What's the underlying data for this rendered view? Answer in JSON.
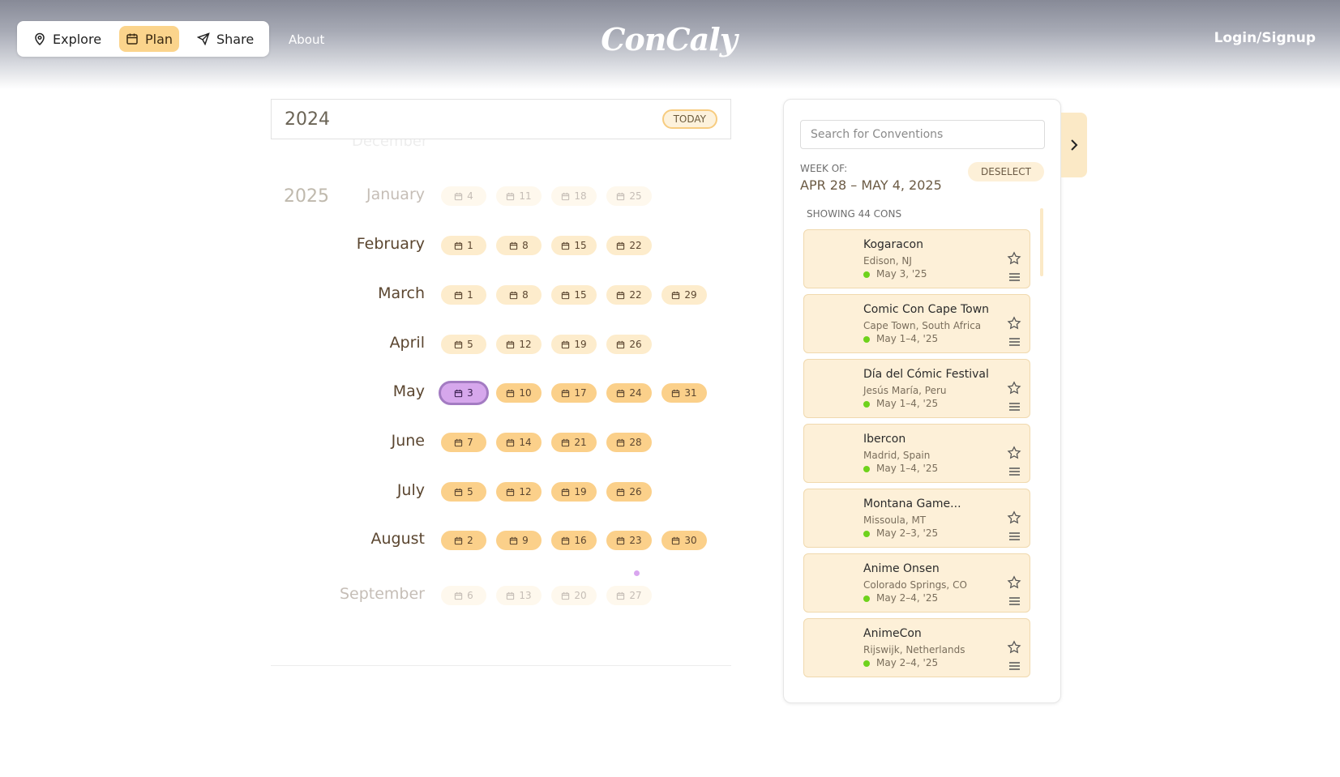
{
  "nav": {
    "explore": "Explore",
    "plan": "Plan",
    "share": "Share",
    "about": "About",
    "logo": "ConCaly",
    "login": "Login/Signup"
  },
  "calendar": {
    "current_year": "2024",
    "today_label": "TODAY",
    "ghost_month": "December",
    "next_year": "2025",
    "months": [
      {
        "name": "January",
        "days": [
          "4",
          "11",
          "18",
          "25"
        ],
        "state": "faded"
      },
      {
        "name": "February",
        "days": [
          "1",
          "8",
          "15",
          "22"
        ],
        "state": "normal"
      },
      {
        "name": "March",
        "days": [
          "1",
          "8",
          "15",
          "22",
          "29"
        ],
        "state": "normal"
      },
      {
        "name": "April",
        "days": [
          "5",
          "12",
          "19",
          "26"
        ],
        "state": "normal"
      },
      {
        "name": "May",
        "days": [
          "3",
          "10",
          "17",
          "24",
          "31"
        ],
        "state": "active",
        "selected_day": "3"
      },
      {
        "name": "June",
        "days": [
          "7",
          "14",
          "21",
          "28"
        ],
        "state": "active"
      },
      {
        "name": "July",
        "days": [
          "5",
          "12",
          "19",
          "26"
        ],
        "state": "active"
      },
      {
        "name": "August",
        "days": [
          "2",
          "9",
          "16",
          "23",
          "30"
        ],
        "state": "active"
      },
      {
        "name": "September",
        "days": [
          "6",
          "13",
          "20",
          "27"
        ],
        "state": "faded"
      }
    ]
  },
  "panel": {
    "search_placeholder": "Search for Conventions",
    "week_of_label": "WEEK OF:",
    "week_range": "APR 28 – MAY 4, 2025",
    "deselect_label": "DESELECT",
    "showing_label": "SHOWING 44 CONS",
    "cons": [
      {
        "name": "Kogaracon",
        "location": "Edison, NJ",
        "date": "May 3, '25"
      },
      {
        "name": "Comic Con Cape Town",
        "location": "Cape Town, South Africa",
        "date": "May 1–4, '25"
      },
      {
        "name": "Día del Cómic Festival",
        "location": "Jesús María, Peru",
        "date": "May 1–4, '25"
      },
      {
        "name": "Ibercon",
        "location": "Madrid, Spain",
        "date": "May 1–4, '25"
      },
      {
        "name": "Montana Game...",
        "location": "Missoula, MT",
        "date": "May 2–3, '25"
      },
      {
        "name": "Anime Onsen",
        "location": "Colorado Springs, CO",
        "date": "May 2–4, '25"
      },
      {
        "name": "AnimeCon",
        "location": "Rijswijk, Netherlands",
        "date": "May 2–4, '25"
      }
    ]
  },
  "colors": {
    "accent": "#fbd08a",
    "selected": "#d6a7ec",
    "card_bg": "#fdf0d8",
    "status_dot": "#6ed21c"
  },
  "icons": [
    "map-pin-icon",
    "calendar-icon",
    "send-icon",
    "chevron-right-icon",
    "star-icon",
    "menu-icon"
  ]
}
